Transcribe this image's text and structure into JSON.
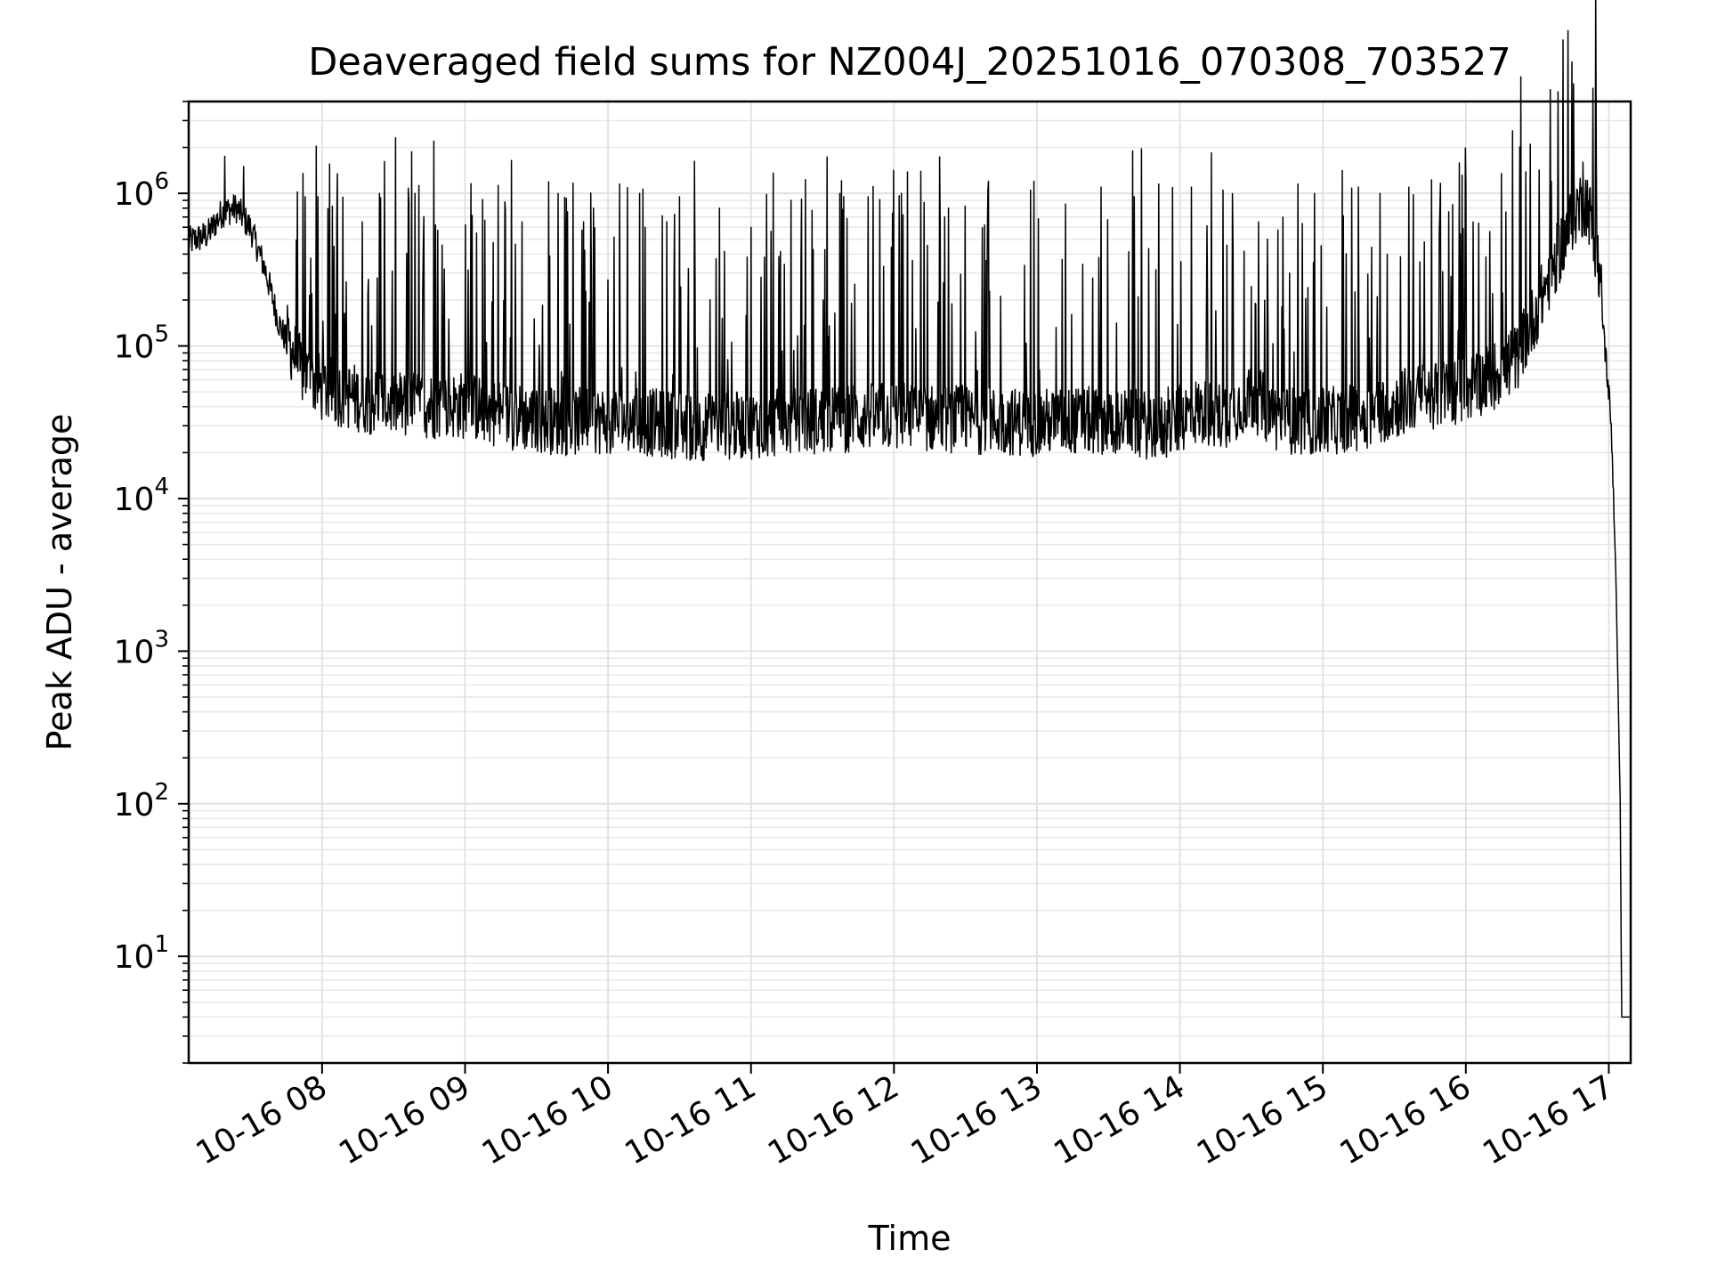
{
  "chart_data": {
    "type": "line",
    "title": "Deaveraged field sums for NZ004J_20251016_070308_703527",
    "xlabel": "Time",
    "ylabel": "Peak ADU - average",
    "yscale": "log",
    "ylim": [
      2,
      4000000
    ],
    "xlim_hours": [
      7.067,
      17.153
    ],
    "grid": true,
    "line_color": "#000000",
    "x_ticks": [
      {
        "label": "10-16 08",
        "hour": 8
      },
      {
        "label": "10-16 09",
        "hour": 9
      },
      {
        "label": "10-16 10",
        "hour": 10
      },
      {
        "label": "10-16 11",
        "hour": 11
      },
      {
        "label": "10-16 12",
        "hour": 12
      },
      {
        "label": "10-16 13",
        "hour": 13
      },
      {
        "label": "10-16 14",
        "hour": 14
      },
      {
        "label": "10-16 15",
        "hour": 15
      },
      {
        "label": "10-16 16",
        "hour": 16
      },
      {
        "label": "10-16 17",
        "hour": 17
      }
    ],
    "y_ticks": [
      {
        "base": "10",
        "exp": "1",
        "value": 10
      },
      {
        "base": "10",
        "exp": "2",
        "value": 100
      },
      {
        "base": "10",
        "exp": "3",
        "value": 1000
      },
      {
        "base": "10",
        "exp": "4",
        "value": 10000
      },
      {
        "base": "10",
        "exp": "5",
        "value": 100000
      },
      {
        "base": "10",
        "exp": "6",
        "value": 1000000
      }
    ],
    "series": [
      {
        "name": "Peak ADU - average",
        "baseline_envelope": [
          [
            7.07,
            450000
          ],
          [
            7.2,
            500000
          ],
          [
            7.3,
            700000
          ],
          [
            7.4,
            750000
          ],
          [
            7.5,
            550000
          ],
          [
            7.6,
            300000
          ],
          [
            7.7,
            130000
          ],
          [
            7.85,
            60000
          ],
          [
            8.0,
            45000
          ],
          [
            8.3,
            38000
          ],
          [
            8.6,
            35000
          ],
          [
            9.0,
            35000
          ],
          [
            9.3,
            30000
          ],
          [
            9.7,
            27000
          ],
          [
            10.0,
            28000
          ],
          [
            10.3,
            27000
          ],
          [
            10.6,
            25000
          ],
          [
            11.0,
            26000
          ],
          [
            11.5,
            28000
          ],
          [
            12.0,
            30000
          ],
          [
            12.5,
            28000
          ],
          [
            13.0,
            27000
          ],
          [
            13.5,
            28000
          ],
          [
            13.9,
            25000
          ],
          [
            14.1,
            32000
          ],
          [
            14.3,
            30000
          ],
          [
            14.5,
            40000
          ],
          [
            14.7,
            28000
          ],
          [
            15.0,
            27000
          ],
          [
            15.3,
            30000
          ],
          [
            15.6,
            38000
          ],
          [
            16.0,
            45000
          ],
          [
            16.2,
            55000
          ],
          [
            16.35,
            70000
          ],
          [
            16.5,
            150000
          ],
          [
            16.65,
            350000
          ],
          [
            16.78,
            700000
          ],
          [
            16.85,
            750000
          ],
          [
            16.93,
            300000
          ],
          [
            17.0,
            45000
          ],
          [
            17.02,
            25000
          ],
          [
            17.05,
            3000
          ],
          [
            17.08,
            100
          ],
          [
            17.09,
            4
          ],
          [
            17.153,
            4
          ]
        ],
        "spike_peaks": [
          [
            7.32,
            1750000
          ],
          [
            7.45,
            1500000
          ],
          [
            7.88,
            950000
          ],
          [
            7.97,
            950000
          ],
          [
            8.28,
            650000
          ],
          [
            8.4,
            1000000
          ],
          [
            8.65,
            1000000
          ],
          [
            8.78,
            2200000
          ],
          [
            9.08,
            550000
          ],
          [
            9.4,
            650000
          ],
          [
            9.65,
            1000000
          ],
          [
            9.9,
            800000
          ],
          [
            10.08,
            1150000
          ],
          [
            10.22,
            1000000
          ],
          [
            10.5,
            950000
          ],
          [
            10.78,
            800000
          ],
          [
            11.0,
            600000
          ],
          [
            11.28,
            900000
          ],
          [
            11.62,
            1000000
          ],
          [
            11.82,
            950000
          ],
          [
            12.05,
            1000000
          ],
          [
            12.38,
            800000
          ],
          [
            12.66,
            1200000
          ],
          [
            12.98,
            1200000
          ],
          [
            13.2,
            850000
          ],
          [
            13.45,
            1100000
          ],
          [
            13.68,
            950000
          ],
          [
            13.85,
            1150000
          ],
          [
            14.08,
            1100000
          ],
          [
            14.3,
            1050000
          ],
          [
            14.55,
            650000
          ],
          [
            14.72,
            700000
          ],
          [
            14.94,
            1000000
          ],
          [
            15.25,
            1100000
          ],
          [
            15.4,
            1000000
          ],
          [
            15.6,
            1100000
          ],
          [
            15.82,
            800000
          ],
          [
            16.0,
            1150000
          ],
          [
            16.25,
            1350000
          ],
          [
            16.45,
            2100000
          ],
          [
            16.6,
            1200000
          ],
          [
            16.82,
            1600000
          ]
        ]
      }
    ]
  }
}
